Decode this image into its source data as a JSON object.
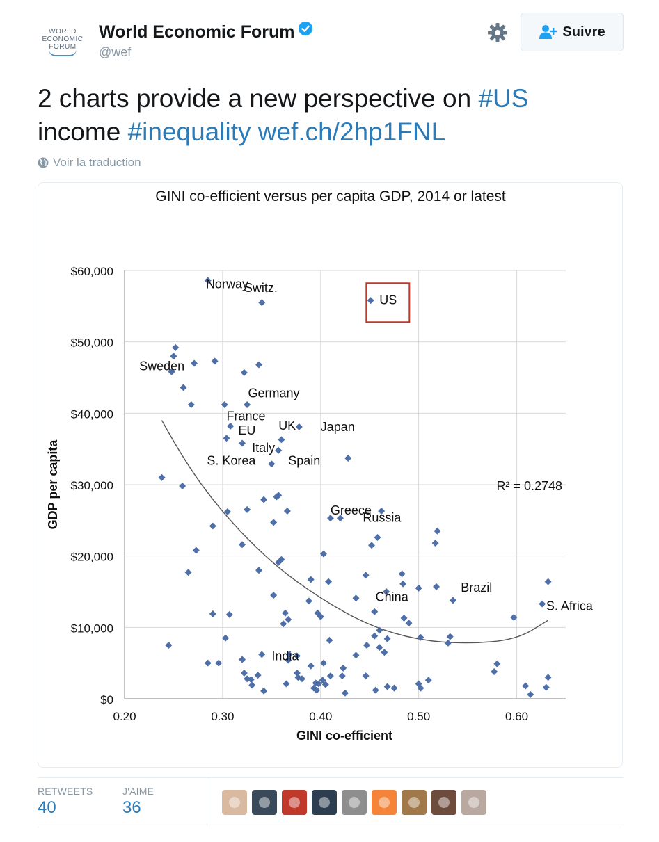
{
  "account": {
    "name": "World Economic Forum",
    "handle": "@wef",
    "logo_lines": [
      "WORLD",
      "ECONOMIC",
      "FORUM"
    ]
  },
  "follow_button": {
    "label": "Suivre"
  },
  "tweet": {
    "text_parts": [
      {
        "text": "2 charts provide a new perspective on ",
        "link": false
      },
      {
        "text": "#US",
        "link": true
      },
      {
        "text": " income ",
        "link": false
      },
      {
        "text": "#inequality",
        "link": true
      },
      {
        "text": " ",
        "link": false
      },
      {
        "text": "wef.ch/2hp1FNL",
        "link": true
      }
    ],
    "translate_label": "Voir la traduction"
  },
  "stats": {
    "retweets_label": "RETWEETS",
    "retweets_value": "40",
    "likes_label": "J'AIME",
    "likes_value": "36"
  },
  "liker_colors": [
    "#d9b9a0",
    "#3a4a5a",
    "#c0392b",
    "#2c3e50",
    "#8e8e8e",
    "#f5843a",
    "#a0784a",
    "#6d4c3d",
    "#b8a8a0"
  ],
  "colors": {
    "accent": "#2b7bb9",
    "marker": "#4f6fa8",
    "highlight": "#c0392b"
  },
  "chart_data": {
    "type": "scatter",
    "title": "GINI co-efficient versus per capita GDP, 2014 or latest",
    "xlabel": "GINI co-efficient",
    "ylabel": "GDP per capita",
    "xlim": [
      0.2,
      0.65
    ],
    "ylim": [
      0,
      60000
    ],
    "xticks": [
      0.2,
      0.3,
      0.4,
      0.5,
      0.6
    ],
    "xtick_labels": [
      "0.20",
      "0.30",
      "0.40",
      "0.50",
      "0.60"
    ],
    "yticks": [
      0,
      10000,
      20000,
      30000,
      40000,
      50000,
      60000
    ],
    "ytick_labels": [
      "$0",
      "$10,000",
      "$20,000",
      "$30,000",
      "$40,000",
      "$50,000",
      "$60,000"
    ],
    "r_squared_label": "R² = 0.2748",
    "highlight_label": "US",
    "trendline": [
      [
        0.238,
        39000
      ],
      [
        0.26,
        33500
      ],
      [
        0.3,
        26000
      ],
      [
        0.35,
        19000
      ],
      [
        0.4,
        14000
      ],
      [
        0.45,
        10200
      ],
      [
        0.5,
        8200
      ],
      [
        0.55,
        7700
      ],
      [
        0.6,
        8300
      ],
      [
        0.632,
        11000
      ]
    ],
    "labels": [
      {
        "text": "Norway",
        "x": 0.283,
        "y": 57500
      },
      {
        "text": "Switz.",
        "x": 0.322,
        "y": 57000
      },
      {
        "text": "US",
        "x": 0.46,
        "y": 55300
      },
      {
        "text": "Sweden",
        "x": 0.215,
        "y": 46000
      },
      {
        "text": "Germany",
        "x": 0.326,
        "y": 42200
      },
      {
        "text": "France",
        "x": 0.304,
        "y": 39000
      },
      {
        "text": "EU",
        "x": 0.316,
        "y": 37000
      },
      {
        "text": "UK",
        "x": 0.357,
        "y": 37700
      },
      {
        "text": "Japan",
        "x": 0.4,
        "y": 37500
      },
      {
        "text": "Italy",
        "x": 0.33,
        "y": 34600
      },
      {
        "text": "S. Korea",
        "x": 0.284,
        "y": 32800
      },
      {
        "text": "Spain",
        "x": 0.367,
        "y": 32800
      },
      {
        "text": "Greece",
        "x": 0.41,
        "y": 25800
      },
      {
        "text": "Russia",
        "x": 0.443,
        "y": 24800
      },
      {
        "text": "China",
        "x": 0.456,
        "y": 13700
      },
      {
        "text": "Brazil",
        "x": 0.543,
        "y": 15000
      },
      {
        "text": "S. Africa",
        "x": 0.63,
        "y": 12400
      },
      {
        "text": "India",
        "x": 0.35,
        "y": 5400
      }
    ],
    "points": [
      [
        0.285,
        58600
      ],
      [
        0.34,
        55500
      ],
      [
        0.451,
        55800
      ],
      [
        0.252,
        49200
      ],
      [
        0.25,
        48000
      ],
      [
        0.271,
        47000
      ],
      [
        0.292,
        47300
      ],
      [
        0.337,
        46800
      ],
      [
        0.248,
        45800
      ],
      [
        0.322,
        45700
      ],
      [
        0.26,
        43600
      ],
      [
        0.268,
        41200
      ],
      [
        0.302,
        41200
      ],
      [
        0.325,
        41200
      ],
      [
        0.378,
        38100
      ],
      [
        0.36,
        36300
      ],
      [
        0.304,
        36500
      ],
      [
        0.308,
        38200
      ],
      [
        0.32,
        35800
      ],
      [
        0.357,
        34800
      ],
      [
        0.428,
        33700
      ],
      [
        0.35,
        32900
      ],
      [
        0.238,
        31000
      ],
      [
        0.259,
        29800
      ],
      [
        0.355,
        28300
      ],
      [
        0.342,
        27900
      ],
      [
        0.357,
        28500
      ],
      [
        0.305,
        26200
      ],
      [
        0.325,
        26500
      ],
      [
        0.366,
        26300
      ],
      [
        0.352,
        24700
      ],
      [
        0.29,
        24200
      ],
      [
        0.42,
        25300
      ],
      [
        0.462,
        26300
      ],
      [
        0.41,
        25300
      ],
      [
        0.519,
        23500
      ],
      [
        0.458,
        22600
      ],
      [
        0.452,
        21500
      ],
      [
        0.517,
        21800
      ],
      [
        0.273,
        20800
      ],
      [
        0.32,
        21600
      ],
      [
        0.403,
        20300
      ],
      [
        0.357,
        19100
      ],
      [
        0.36,
        19500
      ],
      [
        0.265,
        17700
      ],
      [
        0.337,
        18000
      ],
      [
        0.446,
        17300
      ],
      [
        0.483,
        17500
      ],
      [
        0.408,
        16400
      ],
      [
        0.39,
        16700
      ],
      [
        0.484,
        16100
      ],
      [
        0.632,
        16400
      ],
      [
        0.5,
        15500
      ],
      [
        0.518,
        15700
      ],
      [
        0.467,
        15000
      ],
      [
        0.352,
        14500
      ],
      [
        0.436,
        14100
      ],
      [
        0.535,
        13800
      ],
      [
        0.388,
        13700
      ],
      [
        0.626,
        13300
      ],
      [
        0.455,
        12200
      ],
      [
        0.364,
        12000
      ],
      [
        0.397,
        12000
      ],
      [
        0.29,
        11900
      ],
      [
        0.307,
        11800
      ],
      [
        0.367,
        11100
      ],
      [
        0.4,
        11500
      ],
      [
        0.485,
        11300
      ],
      [
        0.597,
        11400
      ],
      [
        0.49,
        10600
      ],
      [
        0.362,
        10500
      ],
      [
        0.303,
        8500
      ],
      [
        0.46,
        9600
      ],
      [
        0.409,
        8200
      ],
      [
        0.455,
        8800
      ],
      [
        0.502,
        8600
      ],
      [
        0.468,
        8400
      ],
      [
        0.532,
        8700
      ],
      [
        0.245,
        7500
      ],
      [
        0.447,
        7500
      ],
      [
        0.46,
        7200
      ],
      [
        0.53,
        7800
      ],
      [
        0.436,
        6100
      ],
      [
        0.465,
        6500
      ],
      [
        0.34,
        6200
      ],
      [
        0.367,
        5400
      ],
      [
        0.368,
        6200
      ],
      [
        0.376,
        6000
      ],
      [
        0.32,
        5500
      ],
      [
        0.403,
        5000
      ],
      [
        0.285,
        5000
      ],
      [
        0.296,
        5000
      ],
      [
        0.58,
        4900
      ],
      [
        0.577,
        3800
      ],
      [
        0.39,
        4600
      ],
      [
        0.423,
        4300
      ],
      [
        0.322,
        3600
      ],
      [
        0.336,
        3300
      ],
      [
        0.329,
        2700
      ],
      [
        0.376,
        3600
      ],
      [
        0.377,
        3000
      ],
      [
        0.381,
        2800
      ],
      [
        0.446,
        3200
      ],
      [
        0.422,
        3200
      ],
      [
        0.41,
        3200
      ],
      [
        0.325,
        2800
      ],
      [
        0.33,
        1900
      ],
      [
        0.365,
        2100
      ],
      [
        0.395,
        2200
      ],
      [
        0.398,
        2100
      ],
      [
        0.402,
        2600
      ],
      [
        0.405,
        2000
      ],
      [
        0.51,
        2600
      ],
      [
        0.5,
        2100
      ],
      [
        0.502,
        1500
      ],
      [
        0.468,
        1700
      ],
      [
        0.475,
        1500
      ],
      [
        0.632,
        3000
      ],
      [
        0.609,
        1800
      ],
      [
        0.63,
        1600
      ],
      [
        0.393,
        1500
      ],
      [
        0.396,
        1200
      ],
      [
        0.342,
        1100
      ],
      [
        0.425,
        800
      ],
      [
        0.456,
        1200
      ],
      [
        0.614,
        600
      ]
    ]
  }
}
